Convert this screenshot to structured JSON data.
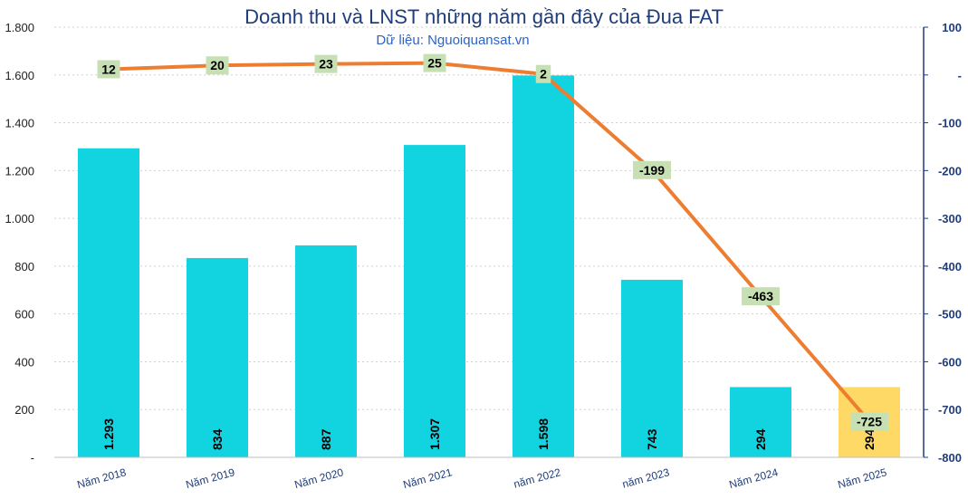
{
  "chart_data": {
    "type": "bar+line",
    "title": "Doanh thu và LNST những năm gần đây của Đua FAT",
    "subtitle": "Dữ liệu: Nguoiquansat.vn",
    "categories": [
      "Năm 2018",
      "Năm 2019",
      "Năm 2020",
      "Năm 2021",
      "năm 2022",
      "năm 2023",
      "Năm 2024",
      "Năm 2025"
    ],
    "series": [
      {
        "axis": "left",
        "kind": "bar",
        "values": [
          1293,
          834,
          887,
          1307,
          1598,
          743,
          294,
          294
        ],
        "labels": [
          "1.293",
          "834",
          "887",
          "1.307",
          "1.598",
          "743",
          "294",
          "294"
        ],
        "color": "#12d3e0",
        "highlight_color": "#ffd966",
        "highlight_index": 7
      },
      {
        "axis": "right",
        "kind": "line",
        "values": [
          12,
          20,
          23,
          25,
          2,
          -199,
          -463,
          -725
        ],
        "labels": [
          "12",
          "20",
          "23",
          "25",
          "2",
          "-199",
          "-463",
          "-725"
        ],
        "color": "#ed7d31",
        "label_bg": "#c6e0b4"
      }
    ],
    "y_left": {
      "min": 0,
      "max": 1800,
      "step": 200,
      "tick_labels": [
        "-",
        "200",
        "400",
        "600",
        "800",
        "1.000",
        "1.200",
        "1.400",
        "1.600",
        "1.800"
      ]
    },
    "y_right": {
      "min": -800,
      "max": 100,
      "step": 100,
      "tick_labels": [
        "-800",
        "-700",
        "-600",
        "-500",
        "-400",
        "-300",
        "-200",
        "-100",
        "-",
        "100"
      ]
    },
    "grid": "horizontal dotted",
    "axis_color": "#1f3d7a"
  }
}
